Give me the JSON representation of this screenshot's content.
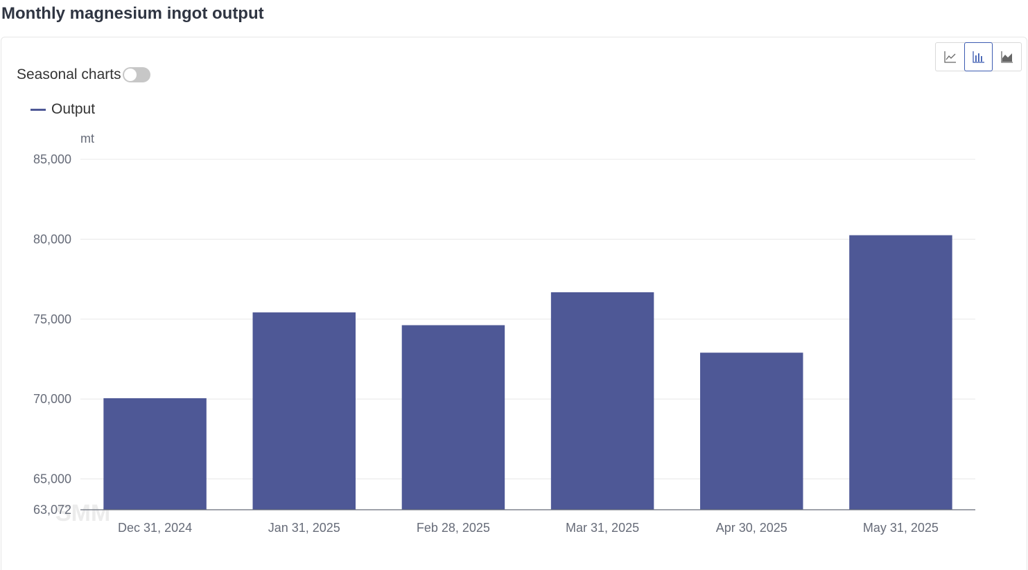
{
  "page": {
    "title": "Monthly magnesium ingot output"
  },
  "controls": {
    "seasonal_label": "Seasonal charts",
    "seasonal_on": false,
    "chart_types": [
      {
        "name": "line",
        "icon": "line-chart-icon",
        "active": false
      },
      {
        "name": "bar",
        "icon": "bar-chart-icon",
        "active": true
      },
      {
        "name": "area",
        "icon": "area-chart-icon",
        "active": false
      }
    ]
  },
  "watermark": "SMM",
  "colors": {
    "bar": "#4e5896",
    "grid": "#e8e8e8",
    "axis": "#666b78",
    "active_button": "#3b5bb1"
  },
  "chart_data": {
    "type": "bar",
    "categories": [
      "Dec 31, 2024",
      "Jan 31, 2025",
      "Feb 28, 2025",
      "Mar 31, 2025",
      "Apr 30, 2025",
      "May 31, 2025"
    ],
    "series": [
      {
        "name": "Output",
        "values": [
          70050,
          75420,
          74620,
          76680,
          72900,
          80250
        ]
      }
    ],
    "ylabel": "mt",
    "ylim": [
      63072,
      85000
    ],
    "yticks": [
      "85,000",
      "80,000",
      "75,000",
      "70,000",
      "65,000",
      "63,072"
    ],
    "ytick_values": [
      85000,
      80000,
      75000,
      70000,
      65000,
      63072
    ],
    "grid": true,
    "legend": "top-left"
  }
}
